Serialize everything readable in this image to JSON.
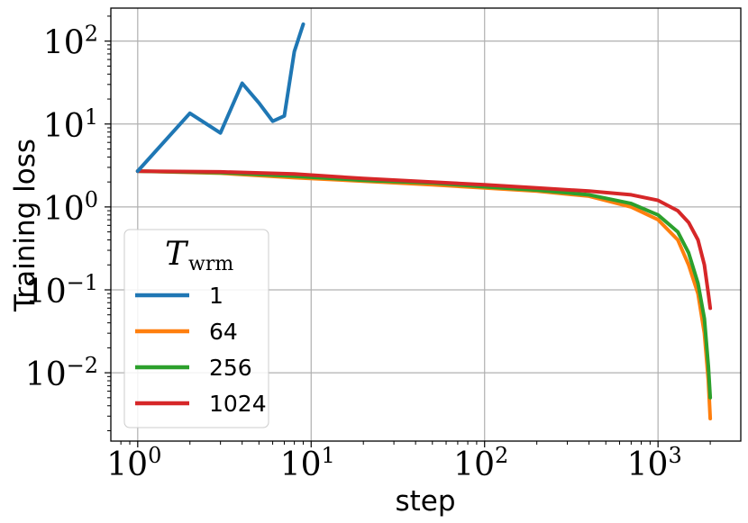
{
  "chart_data": {
    "type": "line",
    "xlabel": "step",
    "ylabel": "Training loss",
    "xscale": "log",
    "yscale": "log",
    "xlim": [
      0.7,
      3000
    ],
    "ylim": [
      0.0015,
      250
    ],
    "x_ticks": [
      1,
      10,
      100,
      1000
    ],
    "y_ticks": [
      0.01,
      0.1,
      1,
      10,
      100
    ],
    "grid": true,
    "legend": {
      "title": "T_wrm",
      "title_main": "T",
      "title_sub": "wrm",
      "position": "lower-left"
    },
    "series": [
      {
        "name": "1",
        "color": "#1f77b4",
        "points": [
          [
            1,
            2.7
          ],
          [
            2,
            13.5
          ],
          [
            3,
            7.8
          ],
          [
            4,
            31
          ],
          [
            5,
            18
          ],
          [
            6,
            10.8
          ],
          [
            7,
            12.5
          ],
          [
            8,
            75
          ],
          [
            9,
            160
          ]
        ]
      },
      {
        "name": "64",
        "color": "#ff7f0e",
        "points": [
          [
            1,
            2.7
          ],
          [
            3,
            2.55
          ],
          [
            8,
            2.25
          ],
          [
            20,
            2.05
          ],
          [
            50,
            1.85
          ],
          [
            100,
            1.7
          ],
          [
            200,
            1.55
          ],
          [
            400,
            1.35
          ],
          [
            700,
            1.0
          ],
          [
            1000,
            0.7
          ],
          [
            1300,
            0.4
          ],
          [
            1500,
            0.2
          ],
          [
            1700,
            0.09
          ],
          [
            1850,
            0.03
          ],
          [
            1950,
            0.008
          ],
          [
            2000,
            0.0028
          ]
        ]
      },
      {
        "name": "256",
        "color": "#2ca02c",
        "points": [
          [
            1,
            2.7
          ],
          [
            3,
            2.6
          ],
          [
            8,
            2.35
          ],
          [
            20,
            2.1
          ],
          [
            50,
            1.95
          ],
          [
            100,
            1.75
          ],
          [
            200,
            1.6
          ],
          [
            400,
            1.4
          ],
          [
            700,
            1.1
          ],
          [
            1000,
            0.8
          ],
          [
            1300,
            0.5
          ],
          [
            1500,
            0.28
          ],
          [
            1700,
            0.12
          ],
          [
            1850,
            0.045
          ],
          [
            1950,
            0.012
          ],
          [
            2000,
            0.005
          ]
        ]
      },
      {
        "name": "1024",
        "color": "#d62728",
        "points": [
          [
            1,
            2.7
          ],
          [
            3,
            2.65
          ],
          [
            8,
            2.5
          ],
          [
            20,
            2.2
          ],
          [
            50,
            2.0
          ],
          [
            100,
            1.85
          ],
          [
            200,
            1.7
          ],
          [
            400,
            1.55
          ],
          [
            700,
            1.4
          ],
          [
            1000,
            1.2
          ],
          [
            1300,
            0.9
          ],
          [
            1500,
            0.65
          ],
          [
            1700,
            0.4
          ],
          [
            1850,
            0.2
          ],
          [
            1950,
            0.09
          ],
          [
            2000,
            0.06
          ]
        ]
      }
    ]
  }
}
